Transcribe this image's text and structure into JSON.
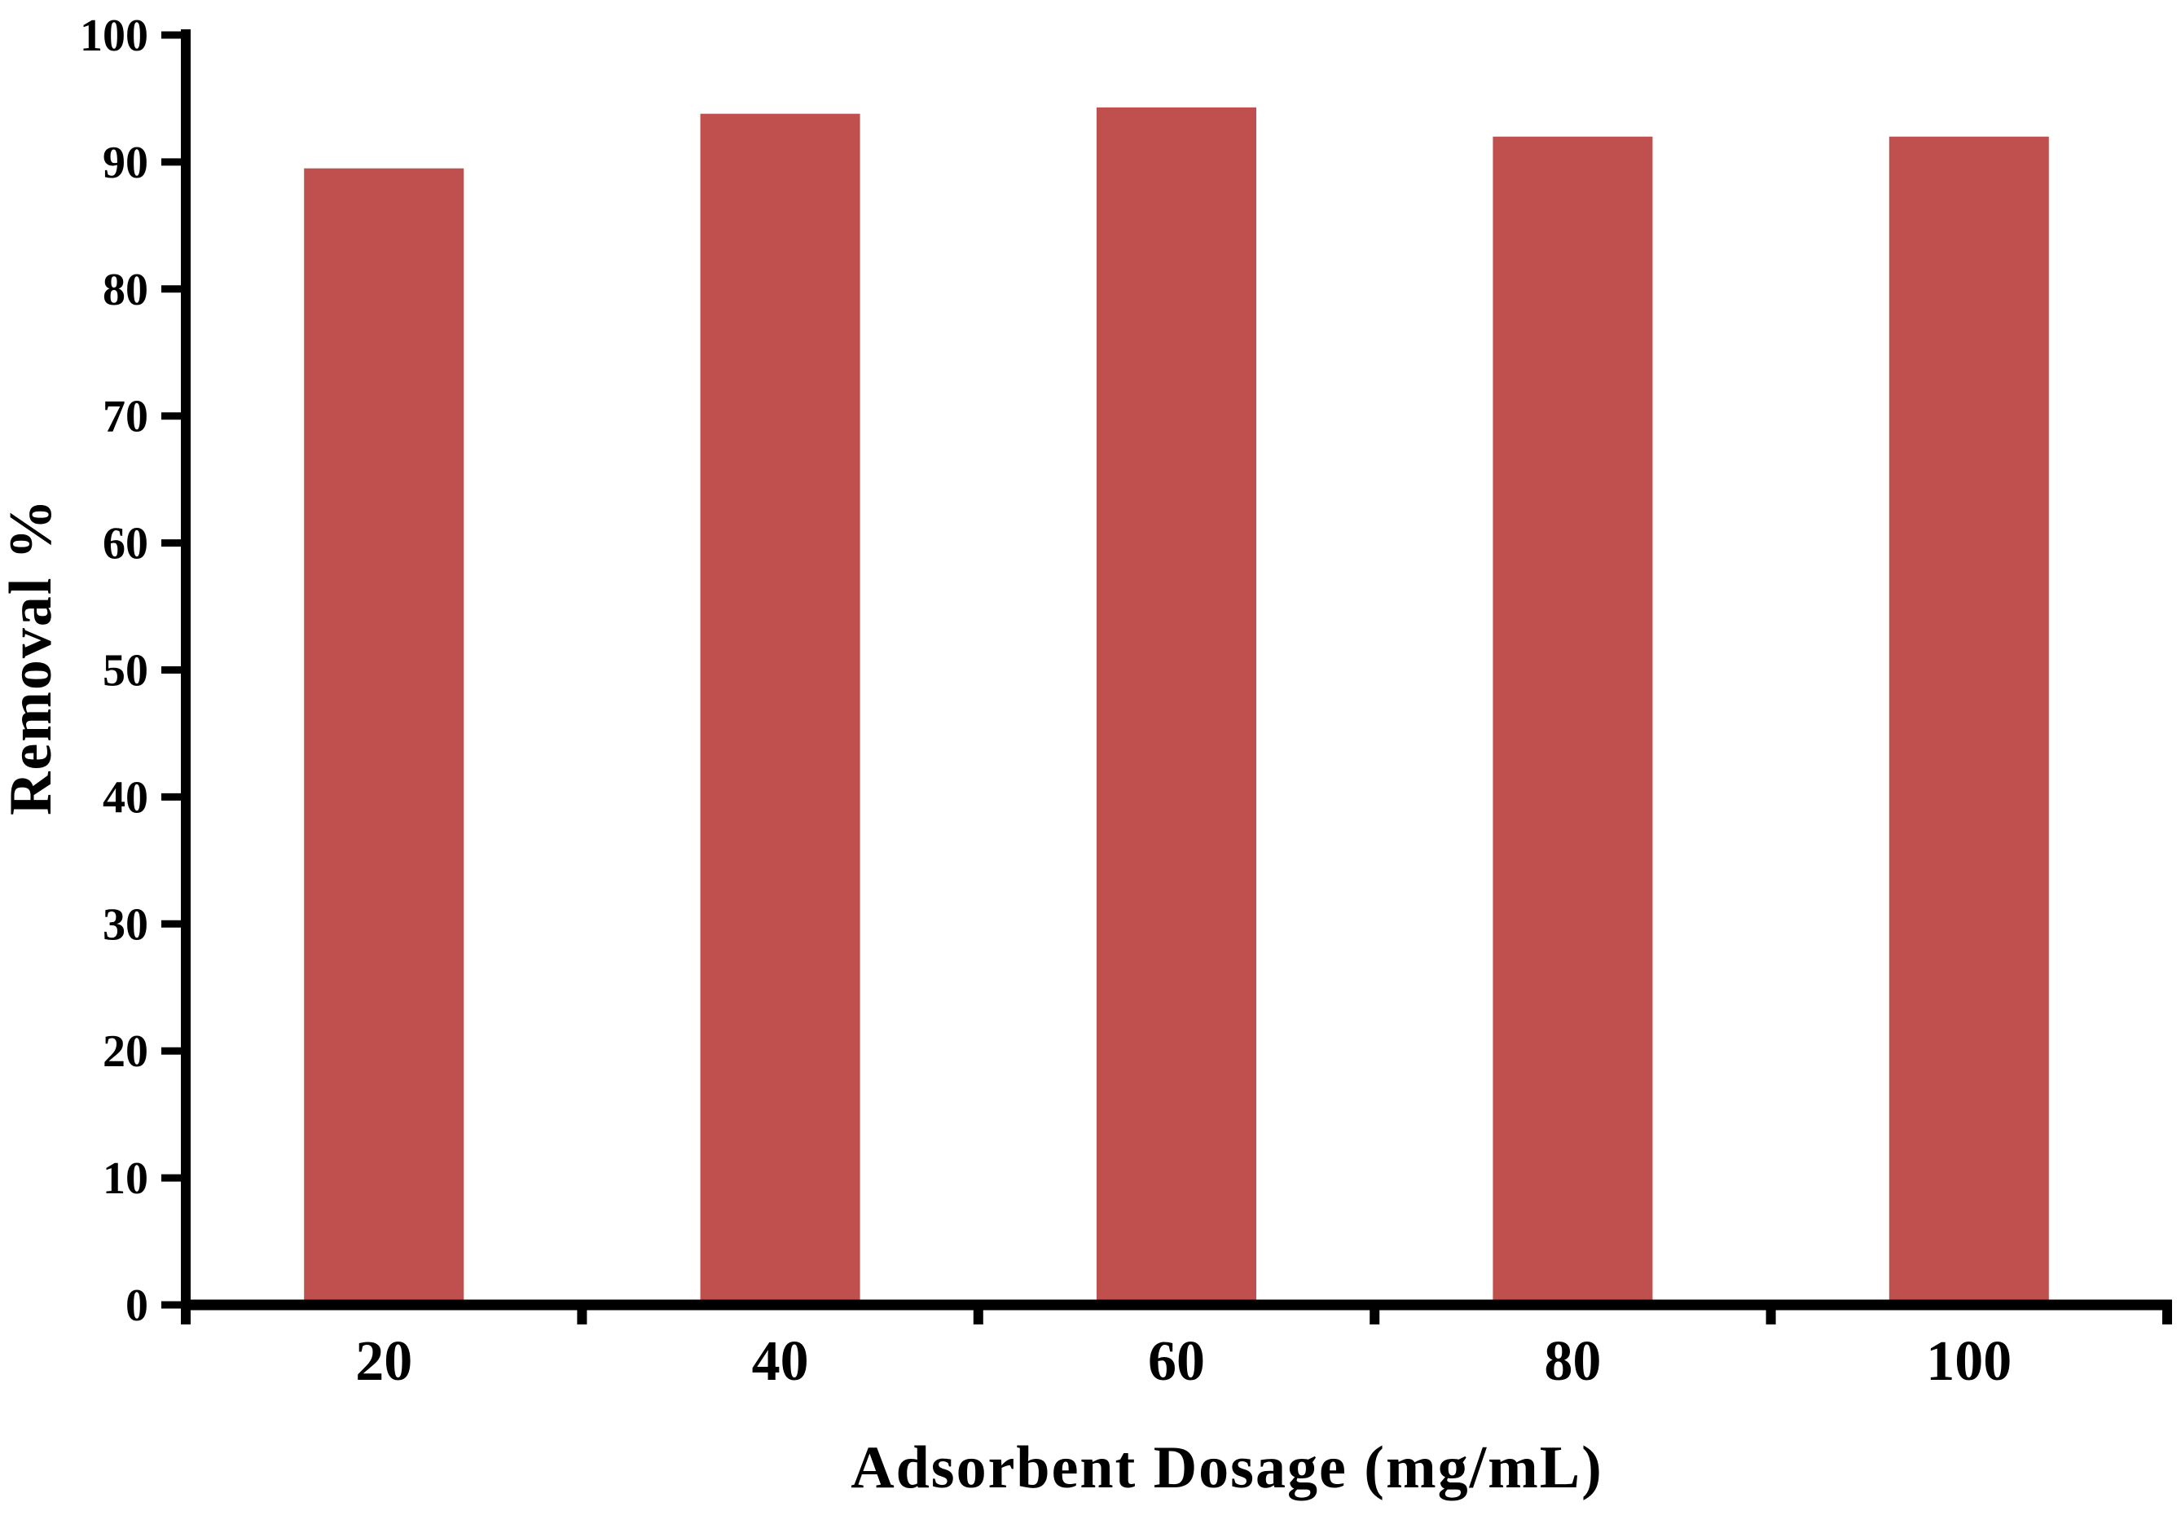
{
  "figure": {
    "background_color": "#ffffff",
    "axis_color": "#000000",
    "text_color": "#000000"
  },
  "chart_data": {
    "type": "bar",
    "xlabel": "Adsorbent Dosage (mg/mL)",
    "ylabel": "Removal %",
    "categories": [
      "20",
      "40",
      "60",
      "80",
      "100"
    ],
    "values": [
      89.5,
      93.8,
      94.3,
      92,
      92
    ],
    "series_name": "Removal %",
    "bar_color": "#c0504d",
    "ylim": [
      0,
      100
    ],
    "ytick_step": 10,
    "yticks": [
      0,
      10,
      20,
      30,
      40,
      50,
      60,
      70,
      80,
      90,
      100
    ],
    "grid": false,
    "legend_position": "none"
  }
}
